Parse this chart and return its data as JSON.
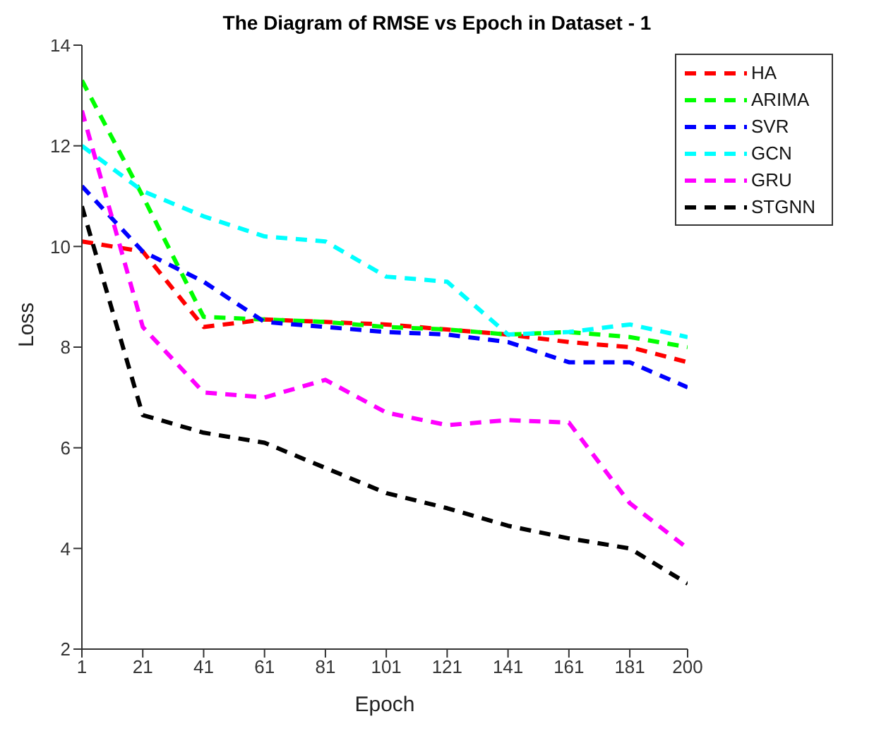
{
  "chart_data": {
    "type": "line",
    "title": "The Diagram of RMSE vs Epoch in Dataset - 1",
    "xlabel": "Epoch",
    "ylabel": "Loss",
    "x": [
      1,
      21,
      41,
      61,
      81,
      101,
      121,
      141,
      161,
      181,
      200
    ],
    "xlim": [
      1,
      200
    ],
    "xticks": [
      1,
      21,
      41,
      61,
      81,
      101,
      121,
      141,
      161,
      181,
      200
    ],
    "ylim": [
      2,
      14
    ],
    "yticks": [
      2,
      4,
      6,
      8,
      10,
      12,
      14
    ],
    "grid": false,
    "legend": "top right",
    "marker": "none",
    "line_style": "dashed",
    "series": [
      {
        "name": "HA",
        "color": "#ff0000",
        "values": [
          10.1,
          9.9,
          8.4,
          8.55,
          8.5,
          8.45,
          8.35,
          8.25,
          8.1,
          8.0,
          7.7
        ]
      },
      {
        "name": "ARIMA",
        "color": "#00ff00",
        "values": [
          13.3,
          11.0,
          8.6,
          8.55,
          8.5,
          8.4,
          8.35,
          8.25,
          8.3,
          8.2,
          8.0
        ]
      },
      {
        "name": "SVR",
        "color": "#0000ff",
        "values": [
          11.2,
          9.9,
          9.3,
          8.5,
          8.4,
          8.3,
          8.25,
          8.1,
          7.7,
          7.7,
          7.2
        ]
      },
      {
        "name": "GCN",
        "color": "#00ffff",
        "values": [
          12.0,
          11.1,
          10.6,
          10.2,
          10.1,
          9.4,
          9.3,
          8.25,
          8.3,
          8.45,
          8.2
        ]
      },
      {
        "name": "GRU",
        "color": "#ff00ff",
        "values": [
          12.7,
          8.4,
          7.1,
          7.0,
          7.35,
          6.7,
          6.45,
          6.55,
          6.5,
          4.9,
          4.0
        ]
      },
      {
        "name": "STGNN",
        "color": "#000000",
        "values": [
          10.8,
          6.65,
          6.3,
          6.1,
          5.6,
          5.1,
          4.8,
          4.45,
          4.2,
          4.0,
          3.3
        ]
      }
    ]
  }
}
